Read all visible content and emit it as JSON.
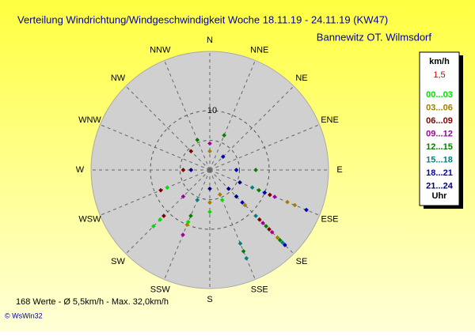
{
  "chart_data": {
    "type": "polar-scatter",
    "title": "Verteilung Windrichtung/Windgeschwindigkeit  Woche 18.11.19 - 24.11.19 (KW47)",
    "subtitle": "Bannewitz OT. Wilmsdorf",
    "directions": [
      "N",
      "NNE",
      "NE",
      "ENE",
      "E",
      "ESE",
      "SE",
      "SSE",
      "S",
      "SSW",
      "SW",
      "WSW",
      "W",
      "WNW",
      "NW",
      "NNW"
    ],
    "rlim": [
      0,
      40
    ],
    "rscale": "sqrt",
    "rticks": [
      10
    ],
    "legend_title": "km/h",
    "legend_calm": "1,5",
    "legend_footer": "Uhr",
    "series": [
      {
        "name": "00...03",
        "color": "#00e000",
        "directions": [
          225,
          225,
          202.5,
          247.5,
          135,
          112.5,
          180,
          157.5
        ],
        "speeds": [
          14,
          18,
          9,
          6,
          4,
          10,
          5,
          3
        ]
      },
      {
        "name": "03...06",
        "color": "#a08000",
        "directions": [
          112.5,
          112.5,
          135,
          202.5,
          180,
          135,
          157.5,
          0
        ],
        "speeds": [
          20,
          24,
          26,
          10,
          3,
          7,
          2,
          1
        ]
      },
      {
        "name": "06...09",
        "color": "#800000",
        "directions": [
          135,
          135,
          112.5,
          225,
          247.5,
          270,
          315
        ],
        "speeds": [
          20,
          14,
          12,
          12,
          8,
          2,
          2
        ]
      },
      {
        "name": "09...12",
        "color": "#a000a0",
        "directions": [
          135,
          135,
          112.5,
          202.5,
          225,
          0
        ],
        "speeds": [
          22,
          16,
          14,
          14,
          4,
          2
        ]
      },
      {
        "name": "12...15",
        "color": "#008000",
        "directions": [
          135,
          135,
          112.5,
          90,
          157.5,
          337.5,
          22.5,
          202.5
        ],
        "speeds": [
          18,
          28,
          8,
          6,
          22,
          3,
          4,
          7
        ]
      },
      {
        "name": "15...18",
        "color": "#008080",
        "directions": [
          135,
          157.5,
          157.5,
          135,
          112.5,
          202.5
        ],
        "speeds": [
          30,
          26,
          18,
          12,
          6,
          3
        ]
      },
      {
        "name": "18...21",
        "color": "#0000c0",
        "directions": [
          135,
          112.5,
          112.5,
          135,
          90,
          45
        ],
        "speeds": [
          32,
          31,
          10,
          6,
          2,
          1
        ]
      },
      {
        "name": "21...24",
        "color": "#000080",
        "directions": [
          135,
          135,
          112.5,
          180,
          270
        ],
        "speeds": [
          4,
          2,
          3,
          1,
          1
        ]
      }
    ],
    "footer": "168 Werte   -   Ø 5,5km/h  -  Max. 32,0km/h",
    "credit": "© WsWin32"
  }
}
